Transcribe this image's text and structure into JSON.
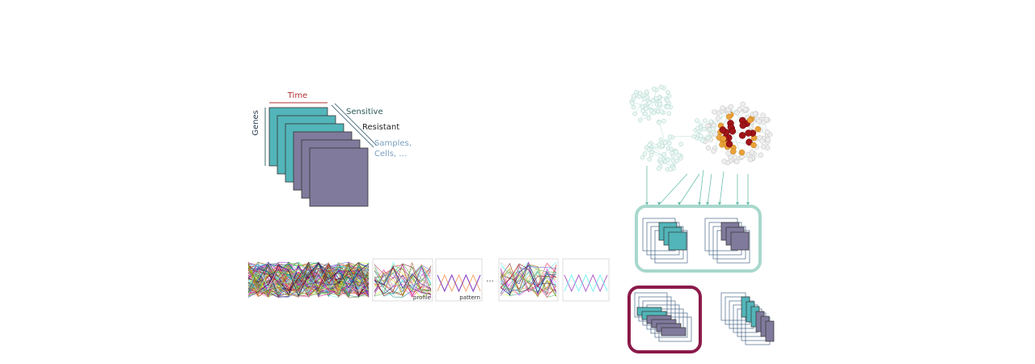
{
  "tensor": {
    "time_label": "Time",
    "genes_label": "Genes",
    "sensitive_label": "Sensitive",
    "resistant_label": "Resistant",
    "samples_label": "Samples,",
    "cells_label": "Cells, …"
  },
  "panels": {
    "profile_label": "profile",
    "pattern_label": "pattern",
    "ellipsis": "..."
  }
}
